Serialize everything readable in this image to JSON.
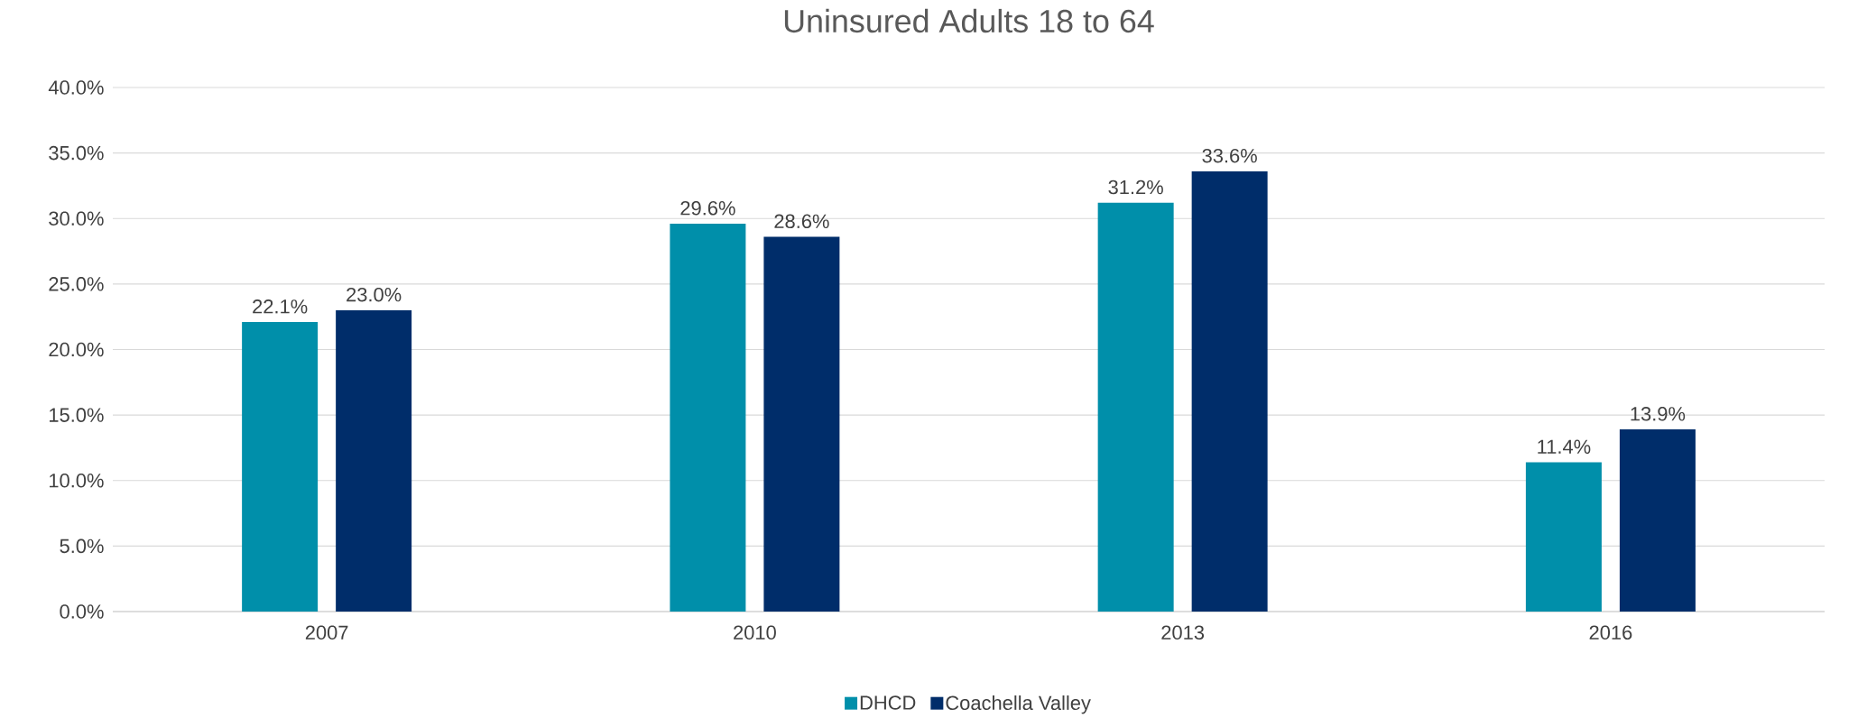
{
  "chart_data": {
    "type": "bar",
    "title": "Uninsured Adults 18 to 64",
    "categories": [
      "2007",
      "2010",
      "2013",
      "2016"
    ],
    "series": [
      {
        "name": "DHCD",
        "color": "#008FAA",
        "values": [
          22.1,
          29.6,
          31.2,
          11.4
        ],
        "value_labels": [
          "22.1%",
          "29.6%",
          "31.2%",
          "11.4%"
        ]
      },
      {
        "name": "Coachella Valley",
        "color": "#002D6A",
        "values": [
          23.0,
          28.6,
          33.6,
          13.9
        ],
        "value_labels": [
          "23.0%",
          "28.6%",
          "33.6%",
          "13.9%"
        ]
      }
    ],
    "ylim": [
      0,
      40
    ],
    "yticks": [
      {
        "value": 0,
        "label": "0.0%"
      },
      {
        "value": 5,
        "label": "5.0%"
      },
      {
        "value": 10,
        "label": "10.0%"
      },
      {
        "value": 15,
        "label": "15.0%"
      },
      {
        "value": 20,
        "label": "20.0%"
      },
      {
        "value": 25,
        "label": "25.0%"
      },
      {
        "value": 30,
        "label": "30.0%"
      },
      {
        "value": 35,
        "label": "35.0%"
      },
      {
        "value": 40,
        "label": "40.0%"
      }
    ],
    "grid": "y",
    "legend": "bottom"
  }
}
